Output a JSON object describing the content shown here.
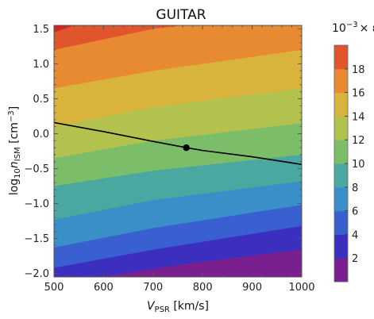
{
  "chart_data": {
    "type": "contour",
    "title": "GUITAR",
    "xlabel": {
      "var": "V",
      "sub": "PSR",
      "unit": " [km/s]"
    },
    "ylabel": {
      "pre": "log",
      "pre_sub": "10",
      "var": "n",
      "sub": "ISM",
      "unit": " [cm",
      "unit_sup": "−3",
      "unit_end": "]"
    },
    "xlim": [
      500,
      1000
    ],
    "ylim": [
      -2.05,
      1.55
    ],
    "x_ticks": [
      500,
      600,
      700,
      800,
      900,
      1000
    ],
    "x_tick_labels": [
      "500",
      "600",
      "700",
      "800",
      "900",
      "1000"
    ],
    "y_ticks": [
      -2.0,
      -1.5,
      -1.0,
      -0.5,
      0.0,
      0.5,
      1.0,
      1.5
    ],
    "y_tick_labels": [
      "−2.0",
      "−1.5",
      "−1.0",
      "−0.5",
      "0.0",
      "0.5",
      "1.0",
      "1.5"
    ],
    "colorbar": {
      "label_prefix": "10",
      "label_exp": "−3",
      "label_suffix": "× ε",
      "range": [
        0,
        20
      ],
      "levels": [
        0,
        2,
        4,
        6,
        8,
        10,
        12,
        14,
        16,
        18,
        20
      ],
      "tick_values": [
        2,
        4,
        6,
        8,
        10,
        12,
        14,
        16,
        18
      ],
      "tick_labels": [
        "2",
        "4",
        "6",
        "8",
        "10",
        "12",
        "14",
        "16",
        "18"
      ],
      "colors": [
        "#7a1f8f",
        "#3c2fc0",
        "#3a5fd0",
        "#3b8fc8",
        "#4aa8a0",
        "#7cbd6a",
        "#b3c24f",
        "#d9b43c",
        "#e88a32",
        "#e0552c",
        "#d82222"
      ]
    },
    "contour_level_lines": [
      {
        "level": 2,
        "points": [
          [
            590,
            -2.05
          ],
          [
            800,
            -1.83
          ],
          [
            1000,
            -1.66
          ]
        ]
      },
      {
        "level": 4,
        "points": [
          [
            500,
            -1.92
          ],
          [
            700,
            -1.66
          ],
          [
            1000,
            -1.32
          ]
        ]
      },
      {
        "level": 6,
        "points": [
          [
            500,
            -1.63
          ],
          [
            700,
            -1.35
          ],
          [
            1000,
            -1.02
          ]
        ]
      },
      {
        "level": 8,
        "points": [
          [
            500,
            -1.23
          ],
          [
            700,
            -0.95
          ],
          [
            1000,
            -0.68
          ]
        ]
      },
      {
        "level": 10,
        "points": [
          [
            500,
            -0.75
          ],
          [
            700,
            -0.53
          ],
          [
            1000,
            -0.3
          ]
        ]
      },
      {
        "level": 12,
        "points": [
          [
            500,
            -0.35
          ],
          [
            700,
            -0.1
          ],
          [
            1000,
            0.15
          ]
        ]
      },
      {
        "level": 14,
        "points": [
          [
            500,
            0.1
          ],
          [
            700,
            0.38
          ],
          [
            1000,
            0.65
          ]
        ]
      },
      {
        "level": 16,
        "points": [
          [
            500,
            0.65
          ],
          [
            700,
            0.9
          ],
          [
            1000,
            1.2
          ]
        ]
      },
      {
        "level": 18,
        "points": [
          [
            500,
            1.2
          ],
          [
            700,
            1.5
          ],
          [
            760,
            1.55
          ]
        ]
      },
      {
        "level": 20,
        "points": [
          [
            500,
            1.45
          ],
          [
            540,
            1.55
          ]
        ]
      }
    ],
    "curve": {
      "points": [
        [
          500,
          0.16
        ],
        [
          600,
          0.03
        ],
        [
          700,
          -0.11
        ],
        [
          767,
          -0.2
        ],
        [
          800,
          -0.24
        ],
        [
          900,
          -0.33
        ],
        [
          1000,
          -0.44
        ]
      ],
      "color": "#000000"
    },
    "marker": {
      "x": 767,
      "y": -0.2,
      "color": "#000000"
    }
  }
}
